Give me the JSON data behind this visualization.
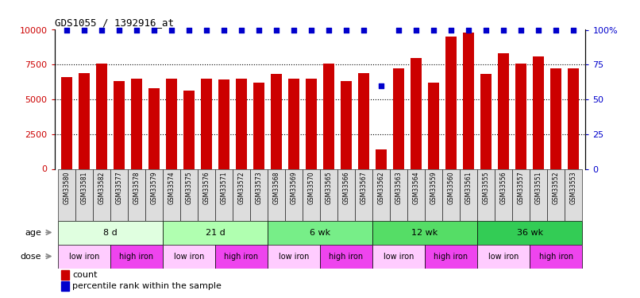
{
  "title": "GDS1055 / 1392916_at",
  "samples": [
    "GSM33580",
    "GSM33581",
    "GSM33582",
    "GSM33577",
    "GSM33578",
    "GSM33579",
    "GSM33574",
    "GSM33575",
    "GSM33576",
    "GSM33571",
    "GSM33572",
    "GSM33573",
    "GSM33568",
    "GSM33569",
    "GSM33570",
    "GSM33565",
    "GSM33566",
    "GSM33567",
    "GSM33562",
    "GSM33563",
    "GSM33564",
    "GSM33559",
    "GSM33560",
    "GSM33561",
    "GSM33555",
    "GSM33556",
    "GSM33557",
    "GSM33551",
    "GSM33552",
    "GSM33553"
  ],
  "counts": [
    6600,
    6900,
    7600,
    6300,
    6500,
    5800,
    6500,
    5600,
    6500,
    6400,
    6500,
    6200,
    6800,
    6500,
    6500,
    7600,
    6300,
    6900,
    1400,
    7200,
    8000,
    6200,
    9500,
    9800,
    6800,
    8300,
    7600,
    8100,
    7200,
    7200
  ],
  "percentile": [
    100,
    100,
    100,
    100,
    100,
    100,
    100,
    100,
    100,
    100,
    100,
    100,
    100,
    100,
    100,
    100,
    100,
    100,
    60,
    100,
    100,
    100,
    100,
    100,
    100,
    100,
    100,
    100,
    100,
    100
  ],
  "bar_color": "#cc0000",
  "dot_color": "#0000cc",
  "ylim_left": [
    0,
    10000
  ],
  "ylim_right": [
    0,
    100
  ],
  "yticks_left": [
    0,
    2500,
    5000,
    7500,
    10000
  ],
  "yticks_right": [
    0,
    25,
    50,
    75,
    100
  ],
  "ytick_labels_left": [
    "0",
    "2500",
    "5000",
    "7500",
    "10000"
  ],
  "ytick_labels_right": [
    "0",
    "25",
    "50",
    "75",
    "100%"
  ],
  "age_groups": [
    {
      "label": "8 d",
      "start": 0,
      "end": 6,
      "color": "#e0ffe0"
    },
    {
      "label": "21 d",
      "start": 6,
      "end": 12,
      "color": "#b0ffb0"
    },
    {
      "label": "6 wk",
      "start": 12,
      "end": 18,
      "color": "#77ee88"
    },
    {
      "label": "12 wk",
      "start": 18,
      "end": 24,
      "color": "#55dd66"
    },
    {
      "label": "36 wk",
      "start": 24,
      "end": 30,
      "color": "#33cc55"
    }
  ],
  "dose_groups": [
    {
      "label": "low iron",
      "start": 0,
      "end": 3,
      "color": "#ffccff"
    },
    {
      "label": "high iron",
      "start": 3,
      "end": 6,
      "color": "#ee44ee"
    },
    {
      "label": "low iron",
      "start": 6,
      "end": 9,
      "color": "#ffccff"
    },
    {
      "label": "high iron",
      "start": 9,
      "end": 12,
      "color": "#ee44ee"
    },
    {
      "label": "low iron",
      "start": 12,
      "end": 15,
      "color": "#ffccff"
    },
    {
      "label": "high iron",
      "start": 15,
      "end": 18,
      "color": "#ee44ee"
    },
    {
      "label": "low iron",
      "start": 18,
      "end": 21,
      "color": "#ffccff"
    },
    {
      "label": "high iron",
      "start": 21,
      "end": 24,
      "color": "#ee44ee"
    },
    {
      "label": "low iron",
      "start": 24,
      "end": 27,
      "color": "#ffccff"
    },
    {
      "label": "high iron",
      "start": 27,
      "end": 30,
      "color": "#ee44ee"
    }
  ],
  "age_label": "age",
  "dose_label": "dose",
  "legend_count": "count",
  "legend_pct": "percentile rank within the sample",
  "bg_color": "#ffffff",
  "tick_color_left": "#cc0000",
  "tick_color_right": "#0000cc",
  "xtick_bg": "#dddddd"
}
